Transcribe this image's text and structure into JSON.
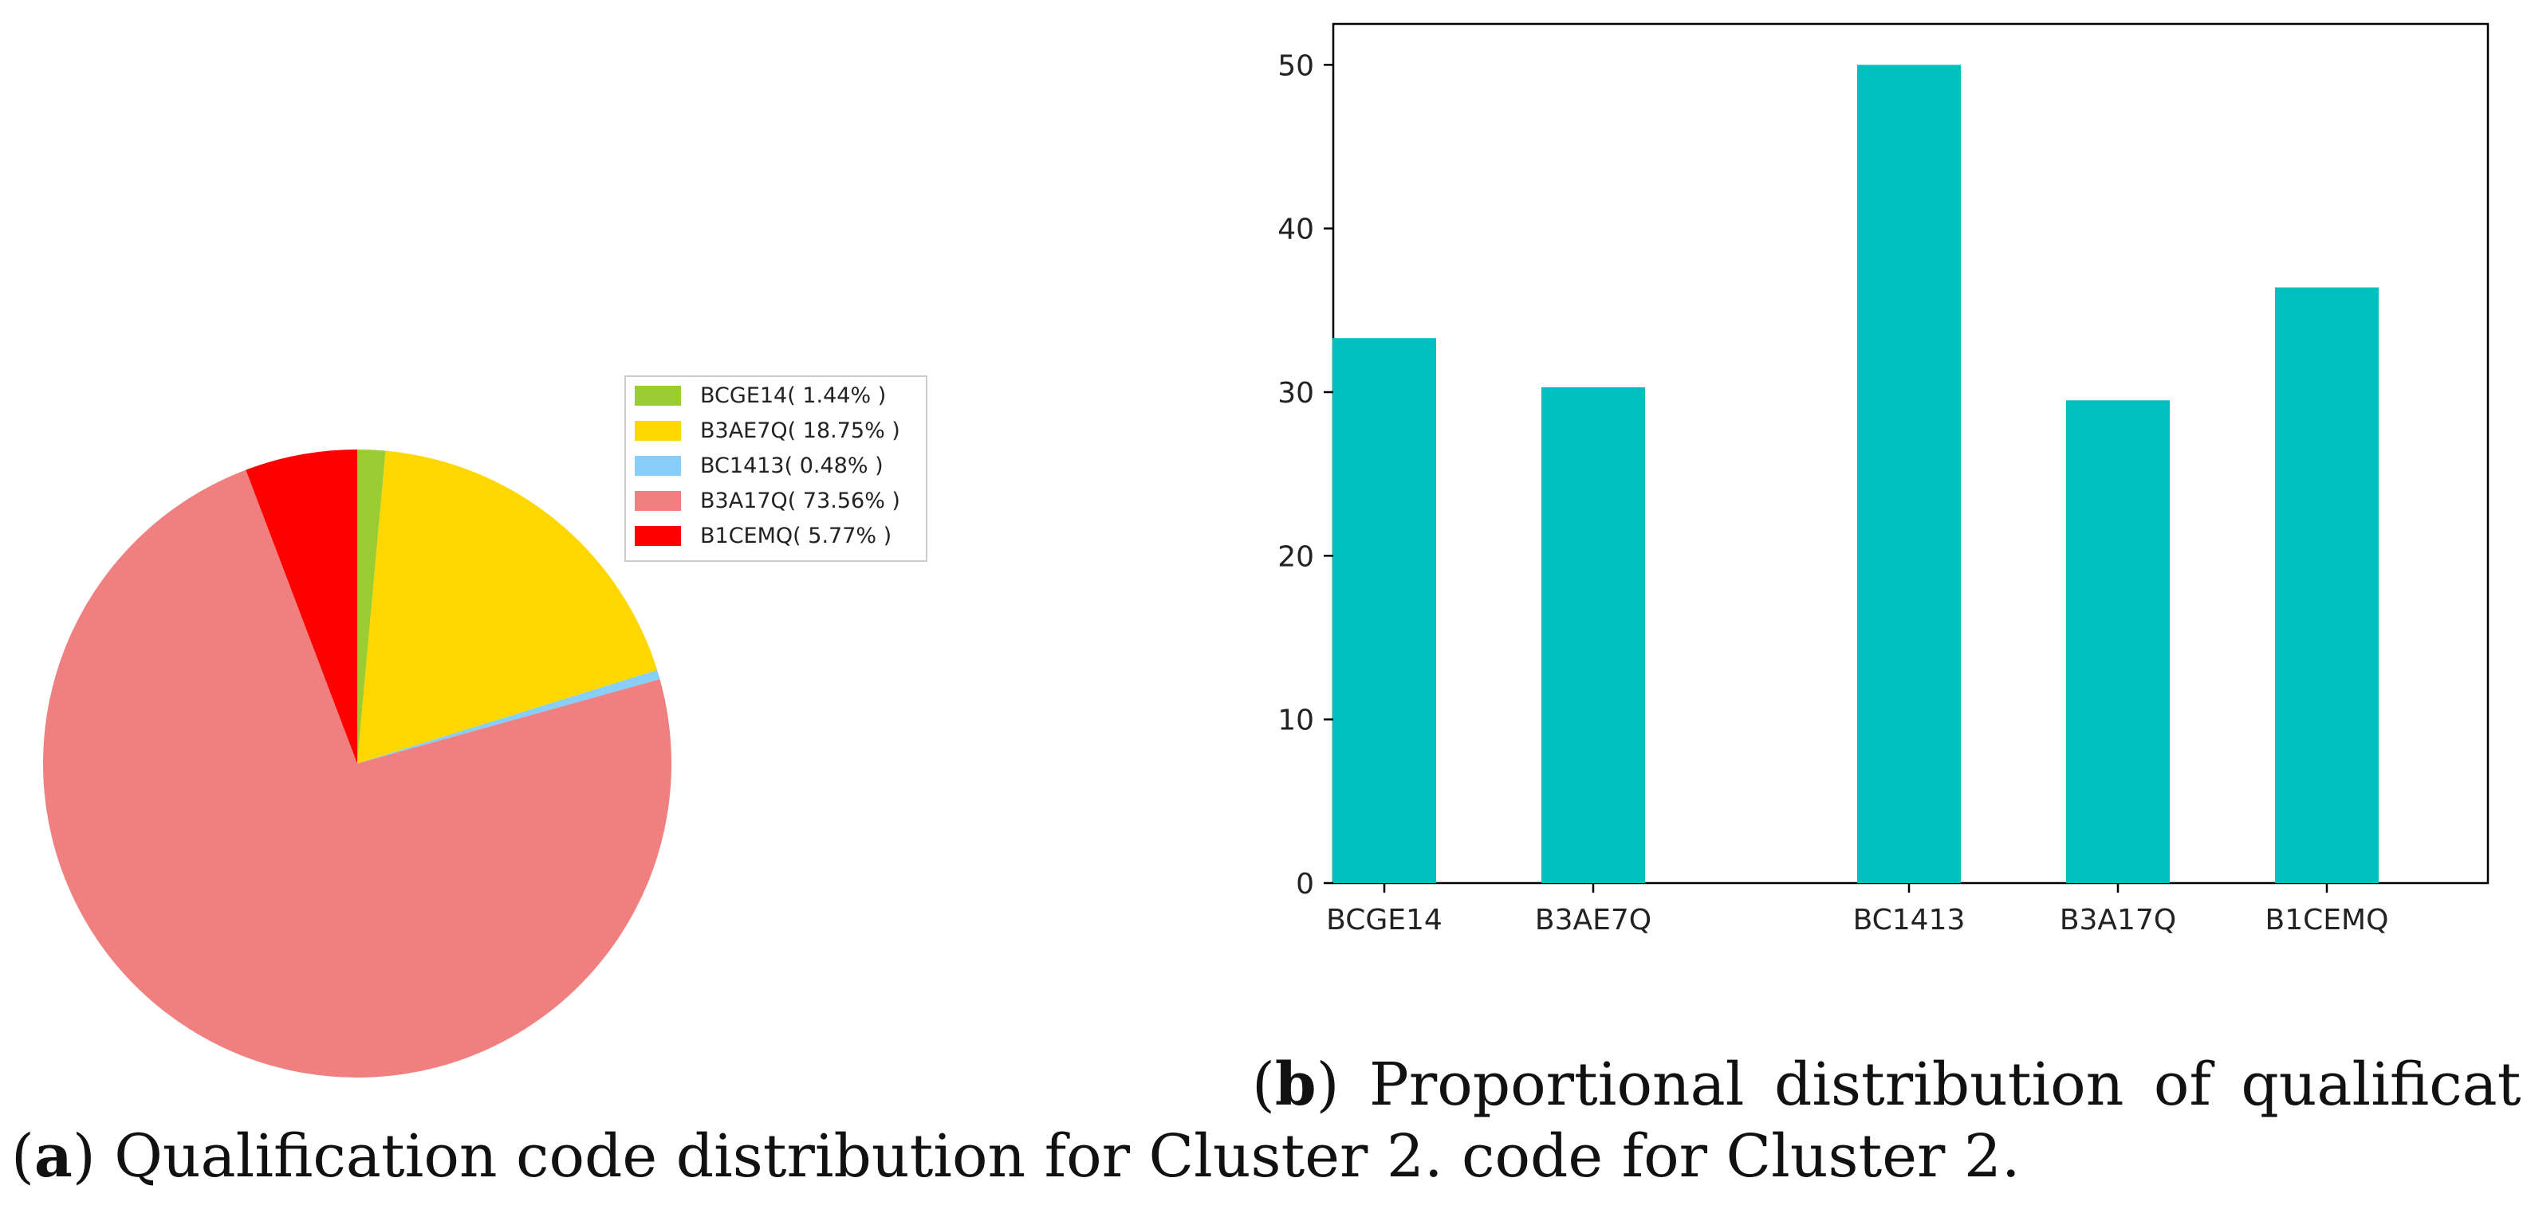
{
  "chart_data": [
    {
      "type": "pie",
      "title": "",
      "slices": [
        {
          "label": "BCGE14",
          "percent": 1.44,
          "color": "#9acd32"
        },
        {
          "label": "B3AE7Q",
          "percent": 18.75,
          "color": "#ffd700"
        },
        {
          "label": "BC1413",
          "percent": 0.48,
          "color": "#87cefa"
        },
        {
          "label": "B3A17Q",
          "percent": 73.56,
          "color": "#f08080"
        },
        {
          "label": "B1CEMQ",
          "percent": 5.77,
          "color": "#ff0000"
        }
      ],
      "legend_labels": [
        "BCGE14( 1.44% )",
        "B3AE7Q( 18.75% )",
        "BC1413( 0.48% )",
        "B3A17Q( 73.56% )",
        "B1CEMQ( 5.77% )"
      ],
      "legend_position": "right",
      "start": "top, clockwise"
    },
    {
      "type": "bar",
      "title": "",
      "categories": [
        "BCGE14",
        "B3AE7Q",
        "BC1413",
        "B3A17Q",
        "B1CEMQ"
      ],
      "values": [
        33.3,
        30.3,
        50.0,
        29.5,
        36.4
      ],
      "bar_color": "#00bfbf",
      "xlabel": "",
      "ylabel": "",
      "ylim": [
        0,
        52.5
      ],
      "yticks": [
        "0",
        "10",
        "20",
        "30",
        "40",
        "50"
      ],
      "grid": false
    }
  ],
  "captions": {
    "b_label": "b",
    "b_text": " Proportional distribution of qualification",
    "a_label": "a",
    "a_text": " Qualification code distribution for Cluster 2. code for Cluster 2."
  }
}
